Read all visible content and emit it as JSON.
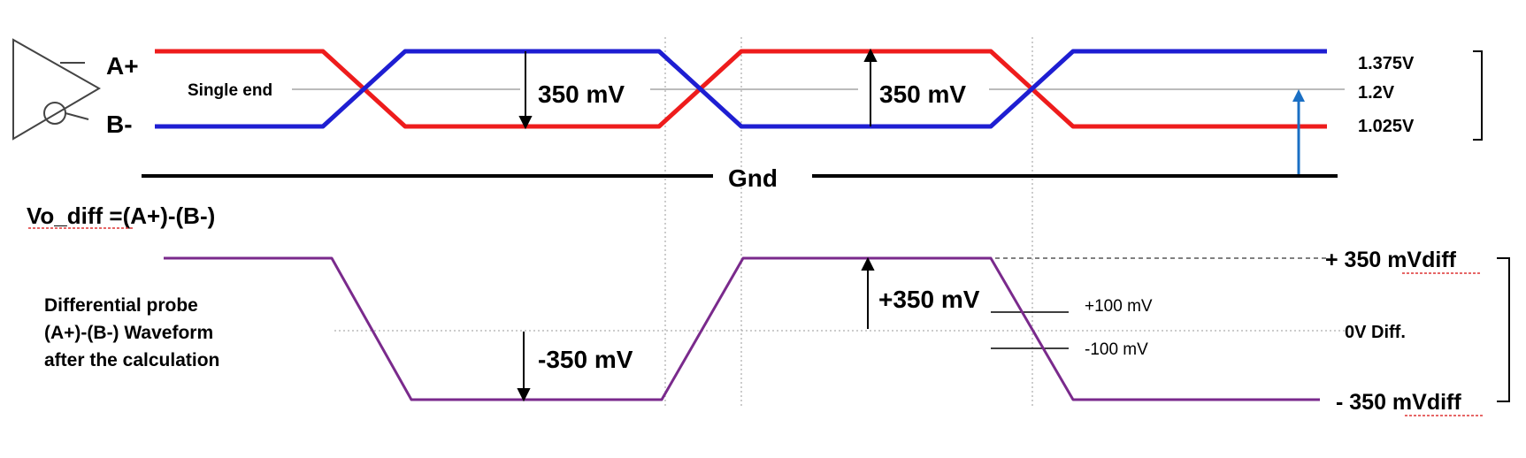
{
  "single_ended": {
    "pin_a_label": "A+",
    "pin_b_label": "B-",
    "single_end_label": "Single end",
    "swing_label_1": "350 mV",
    "swing_label_2": "350 mV",
    "ground_label": "Gnd",
    "level_high": "1.375V",
    "level_mid": "1.2V",
    "level_low": "1.025V"
  },
  "differential": {
    "formula": "Vo_diff =(A+)-(B-)",
    "probe_text": [
      "Differential probe",
      "(A+)-(B-) Waveform",
      "after the calculation"
    ],
    "neg_swing_label": "-350 mV",
    "pos_swing_label": "+350 mV",
    "thresh_pos": "+100 mV",
    "thresh_neg": "-100 mV",
    "level_pos": "+ 350 mVdiff",
    "level_zero": "0V Diff.",
    "level_neg": "- 350 mVdiff"
  },
  "colors": {
    "a_plus": "#ee1c1c",
    "b_minus": "#1e1ed2",
    "diff": "#7a2a8c",
    "mid_level": "#1a6fc4",
    "probe_text": "#6a2f93"
  }
}
